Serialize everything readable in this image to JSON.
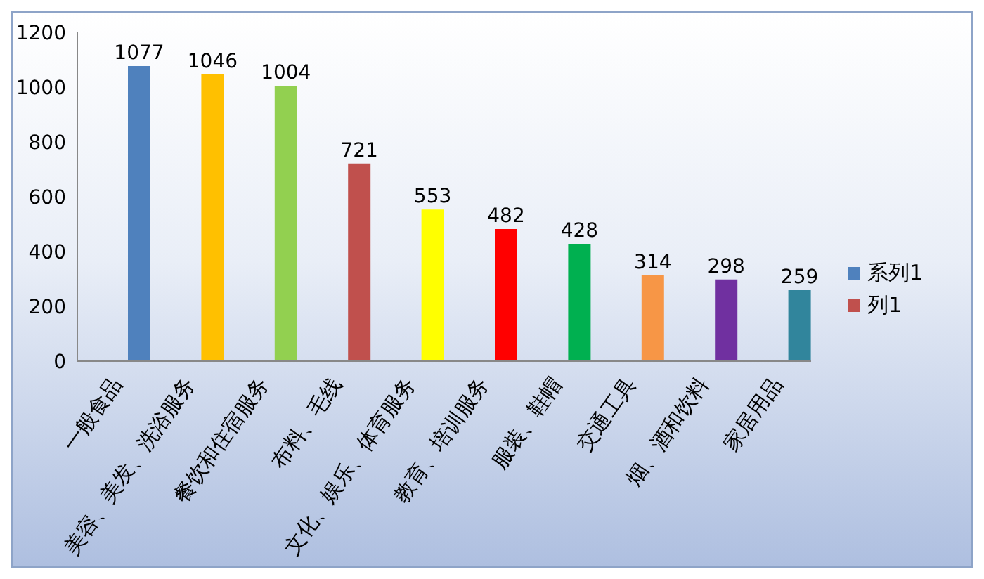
{
  "chart_data": {
    "type": "bar",
    "categories": [
      "一般食品",
      "美容、美发、洗浴服务",
      "餐饮和住宿服务",
      "布料、毛线",
      "文化、娱乐、体育服务",
      "教育、培训服务",
      "服装、鞋帽",
      "交通工具",
      "烟、酒和饮料",
      "家居用品"
    ],
    "series": [
      {
        "name": "系列1",
        "color": "#4f81bd",
        "colors": [
          "#4f81bd",
          "#ffc000",
          "#92d050",
          "#c0504d",
          "#ffff00",
          "#ff0000",
          "#00b050",
          "#f79646",
          "#7030a0",
          "#31859c"
        ],
        "values": [
          1077,
          1046,
          1004,
          721,
          553,
          482,
          428,
          314,
          298,
          259
        ]
      },
      {
        "name": "列1",
        "color": "#c0504d",
        "values": [
          null,
          null,
          null,
          null,
          null,
          null,
          null,
          null,
          null,
          null
        ]
      }
    ],
    "ylim": [
      0,
      1200
    ],
    "yticks": [
      0,
      200,
      400,
      600,
      800,
      1000,
      1200
    ],
    "grid": false,
    "legend": "right",
    "data_labels": true
  }
}
